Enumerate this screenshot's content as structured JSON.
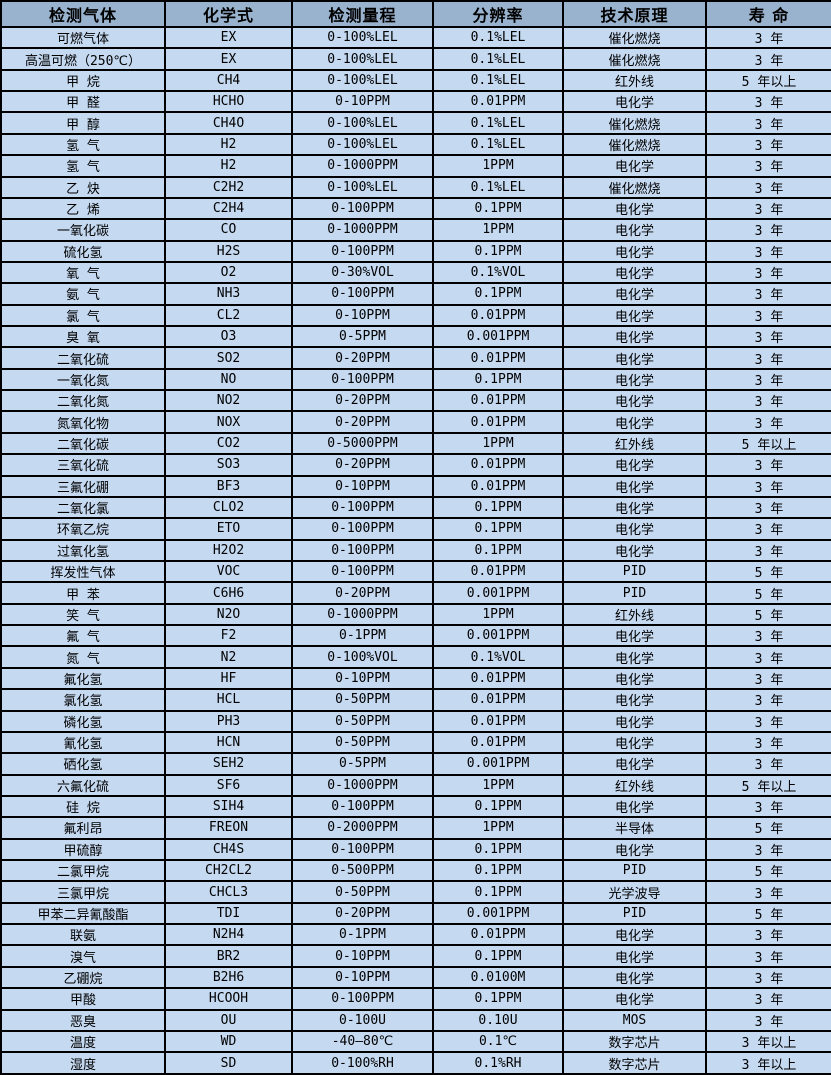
{
  "colors": {
    "header_bg": "#99B2CE",
    "row_bg": "#C5D9F1",
    "border": "#000000",
    "text": "#000000"
  },
  "table": {
    "headers": [
      "检测气体",
      "化学式",
      "检测量程",
      "分辨率",
      "技术原理",
      "寿 命"
    ],
    "rows": [
      [
        "可燃气体",
        "EX",
        "0-100%LEL",
        "0.1%LEL",
        "催化燃烧",
        "3 年"
      ],
      [
        "高温可燃（250℃）",
        "EX",
        "0-100%LEL",
        "0.1%LEL",
        "催化燃烧",
        "3 年"
      ],
      [
        "甲 烷",
        "CH4",
        "0-100%LEL",
        "0.1%LEL",
        "红外线",
        "5 年以上"
      ],
      [
        "甲 醛",
        "HCHO",
        "0-10PPM",
        "0.01PPM",
        "电化学",
        "3 年"
      ],
      [
        "甲 醇",
        "CH4O",
        "0-100%LEL",
        "0.1%LEL",
        "催化燃烧",
        "3 年"
      ],
      [
        "氢 气",
        "H2",
        "0-100%LEL",
        "0.1%LEL",
        "催化燃烧",
        "3 年"
      ],
      [
        "氢 气",
        "H2",
        "0-1000PPM",
        "1PPM",
        "电化学",
        "3 年"
      ],
      [
        "乙 炔",
        "C2H2",
        "0-100%LEL",
        "0.1%LEL",
        "催化燃烧",
        "3 年"
      ],
      [
        "乙 烯",
        "C2H4",
        "0-100PPM",
        "0.1PPM",
        "电化学",
        "3 年"
      ],
      [
        "一氧化碳",
        "CO",
        "0-1000PPM",
        "1PPM",
        "电化学",
        "3 年"
      ],
      [
        "硫化氢",
        "H2S",
        "0-100PPM",
        "0.1PPM",
        "电化学",
        "3 年"
      ],
      [
        "氧 气",
        "O2",
        "0-30%VOL",
        "0.1%VOL",
        "电化学",
        "3 年"
      ],
      [
        "氨 气",
        "NH3",
        "0-100PPM",
        "0.1PPM",
        "电化学",
        "3 年"
      ],
      [
        "氯 气",
        "CL2",
        "0-10PPM",
        "0.01PPM",
        "电化学",
        "3 年"
      ],
      [
        "臭 氧",
        "O3",
        "0-5PPM",
        "0.001PPM",
        "电化学",
        "3 年"
      ],
      [
        "二氧化硫",
        "SO2",
        "0-20PPM",
        "0.01PPM",
        "电化学",
        "3 年"
      ],
      [
        "一氧化氮",
        "NO",
        "0-100PPM",
        "0.1PPM",
        "电化学",
        "3 年"
      ],
      [
        "二氧化氮",
        "NO2",
        "0-20PPM",
        "0.01PPM",
        "电化学",
        "3 年"
      ],
      [
        "氮氧化物",
        "NOX",
        "0-20PPM",
        "0.01PPM",
        "电化学",
        "3 年"
      ],
      [
        "二氧化碳",
        "CO2",
        "0-5000PPM",
        "1PPM",
        "红外线",
        "5 年以上"
      ],
      [
        "三氧化硫",
        "SO3",
        "0-20PPM",
        "0.01PPM",
        "电化学",
        "3 年"
      ],
      [
        "三氟化硼",
        "BF3",
        "0-10PPM",
        "0.01PPM",
        "电化学",
        "3 年"
      ],
      [
        "二氧化氯",
        "CLO2",
        "0-100PPM",
        "0.1PPM",
        "电化学",
        "3 年"
      ],
      [
        "环氧乙烷",
        "ETO",
        "0-100PPM",
        "0.1PPM",
        "电化学",
        "3 年"
      ],
      [
        "过氧化氢",
        "H2O2",
        "0-100PPM",
        "0.1PPM",
        "电化学",
        "3 年"
      ],
      [
        "挥发性气体",
        "VOC",
        "0-100PPM",
        "0.01PPM",
        "PID",
        "5 年"
      ],
      [
        "甲 苯",
        "C6H6",
        "0-20PPM",
        "0.001PPM",
        "PID",
        "5 年"
      ],
      [
        "笑 气",
        "N2O",
        "0-1000PPM",
        "1PPM",
        "红外线",
        "5 年"
      ],
      [
        "氟 气",
        "F2",
        "0-1PPM",
        "0.001PPM",
        "电化学",
        "3 年"
      ],
      [
        "氮 气",
        "N2",
        "0-100%VOL",
        "0.1%VOL",
        "电化学",
        "3 年"
      ],
      [
        "氟化氢",
        "HF",
        "0-10PPM",
        "0.01PPM",
        "电化学",
        "3 年"
      ],
      [
        "氯化氢",
        "HCL",
        "0-50PPM",
        "0.01PPM",
        "电化学",
        "3 年"
      ],
      [
        "磷化氢",
        "PH3",
        "0-50PPM",
        "0.01PPM",
        "电化学",
        "3 年"
      ],
      [
        "氰化氢",
        "HCN",
        "0-50PPM",
        "0.01PPM",
        "电化学",
        "3 年"
      ],
      [
        "硒化氢",
        "SEH2",
        "0-5PPM",
        "0.001PPM",
        "电化学",
        "3 年"
      ],
      [
        "六氟化硫",
        "SF6",
        "0-1000PPM",
        "1PPM",
        "红外线",
        "5 年以上"
      ],
      [
        "硅 烷",
        "SIH4",
        "0-100PPM",
        "0.1PPM",
        "电化学",
        "3 年"
      ],
      [
        "氟利昂",
        "FREON",
        "0-2000PPM",
        "1PPM",
        "半导体",
        "5 年"
      ],
      [
        "甲硫醇",
        "CH4S",
        "0-100PPM",
        "0.1PPM",
        "电化学",
        "3 年"
      ],
      [
        "二氯甲烷",
        "CH2CL2",
        "0-500PPM",
        "0.1PPM",
        "PID",
        "5 年"
      ],
      [
        "三氯甲烷",
        "CHCL3",
        "0-50PPM",
        "0.1PPM",
        "光学波导",
        "3 年"
      ],
      [
        "甲苯二异氰酸酯",
        "TDI",
        "0-20PPM",
        "0.001PPM",
        "PID",
        "5 年"
      ],
      [
        "联氨",
        "N2H4",
        "0-1PPM",
        "0.01PPM",
        "电化学",
        "3 年"
      ],
      [
        "溴气",
        "BR2",
        "0-10PPM",
        "0.1PPM",
        "电化学",
        "3 年"
      ],
      [
        "乙硼烷",
        "B2H6",
        "0-10PPM",
        "0.0100M",
        "电化学",
        "3 年"
      ],
      [
        "甲酸",
        "HCOOH",
        "0-100PPM",
        "0.1PPM",
        "电化学",
        "3 年"
      ],
      [
        "恶臭",
        "OU",
        "0-100U",
        "0.10U",
        "MOS",
        "3 年"
      ],
      [
        "温度",
        "WD",
        "-40—80℃",
        "0.1℃",
        "数字芯片",
        "3 年以上"
      ],
      [
        "湿度",
        "SD",
        "0-100%RH",
        "0.1%RH",
        "数字芯片",
        "3 年以上"
      ]
    ]
  }
}
